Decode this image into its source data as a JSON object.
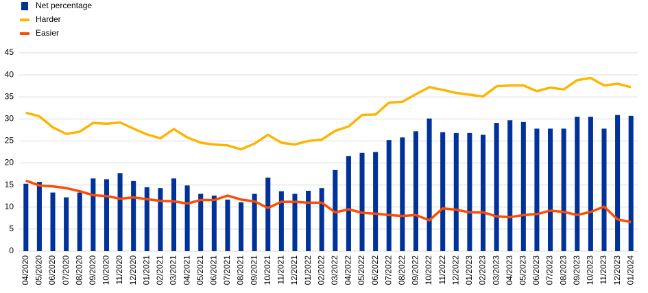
{
  "chart_data": {
    "type": "bar_line",
    "categories": [
      "04/2020",
      "05/2020",
      "06/2020",
      "07/2020",
      "08/2020",
      "09/2020",
      "10/2020",
      "11/2020",
      "12/2020",
      "01/2021",
      "02/2021",
      "03/2021",
      "04/2021",
      "05/2021",
      "06/2021",
      "07/2021",
      "08/2021",
      "09/2021",
      "10/2021",
      "11/2021",
      "12/2021",
      "01/2022",
      "02/2022",
      "03/2022",
      "04/2022",
      "05/2022",
      "06/2022",
      "07/2022",
      "08/2022",
      "09/2022",
      "10/2022",
      "11/2022",
      "12/2022",
      "01/2023",
      "02/2023",
      "03/2023",
      "04/2023",
      "05/2023",
      "06/2023",
      "07/2023",
      "08/2023",
      "09/2023",
      "10/2023",
      "11/2023",
      "12/2023",
      "01/2024"
    ],
    "series": [
      {
        "name": "Net percentage",
        "kind": "bar",
        "color": "#003299",
        "values": [
          15.3,
          15.7,
          13.3,
          12.2,
          13.3,
          16.5,
          16.3,
          17.7,
          15.9,
          14.5,
          14.3,
          16.5,
          14.9,
          13.0,
          12.6,
          11.7,
          11.1,
          13.0,
          16.7,
          13.6,
          13.0,
          13.7,
          14.3,
          18.4,
          21.6,
          22.3,
          22.5,
          25.2,
          25.8,
          27.2,
          30.1,
          27.0,
          26.8,
          26.8,
          26.4,
          29.1,
          29.7,
          29.3,
          27.8,
          27.8,
          27.8,
          30.5,
          30.5,
          27.8,
          30.9,
          30.7
        ]
      },
      {
        "name": "Harder",
        "kind": "line",
        "color": "#ffb400",
        "values": [
          31.4,
          30.6,
          28.1,
          26.6,
          27.1,
          29.1,
          28.9,
          29.2,
          27.8,
          26.5,
          25.6,
          27.7,
          25.8,
          24.6,
          24.2,
          24.0,
          23.1,
          24.4,
          26.4,
          24.6,
          24.2,
          25.0,
          25.3,
          27.3,
          28.3,
          30.9,
          31.0,
          33.7,
          33.9,
          35.6,
          37.2,
          36.6,
          35.9,
          35.5,
          35.1,
          37.4,
          37.6,
          37.6,
          36.3,
          37.1,
          36.7,
          38.8,
          39.3,
          37.6,
          38.0,
          37.2
        ]
      },
      {
        "name": "Easier",
        "kind": "line",
        "color": "#ff4b00",
        "values": [
          16.0,
          14.9,
          14.7,
          14.3,
          13.6,
          12.7,
          12.5,
          11.9,
          12.2,
          11.8,
          11.4,
          11.3,
          10.8,
          11.6,
          11.6,
          12.6,
          11.7,
          11.3,
          9.8,
          11.2,
          11.2,
          11.0,
          11.0,
          8.8,
          9.5,
          8.7,
          8.5,
          8.2,
          8.0,
          8.2,
          7.0,
          9.7,
          9.4,
          8.8,
          8.8,
          7.9,
          7.7,
          8.2,
          8.4,
          9.2,
          8.9,
          8.2,
          8.9,
          10.1,
          7.2,
          6.6
        ]
      }
    ],
    "ylim": [
      0,
      45
    ],
    "yticks": [
      0,
      5,
      10,
      15,
      20,
      25,
      30,
      35,
      40,
      45
    ],
    "grid": true,
    "legend": "top-left"
  }
}
